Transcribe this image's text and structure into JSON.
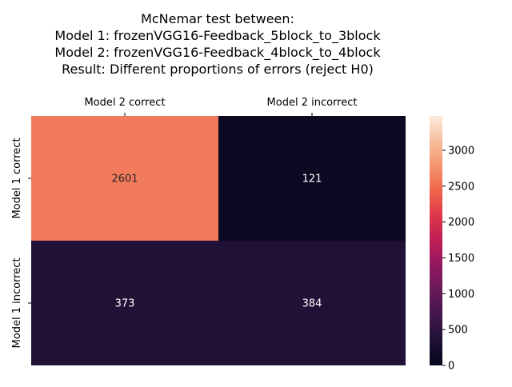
{
  "chart_data": {
    "type": "heatmap",
    "title_lines": [
      "McNemar test between:",
      "Model 1: frozenVGG16-Feedback_5block_to_3block",
      "Model 2: frozenVGG16-Feedback_4block_to_4block",
      "Result: Different proportions of errors (reject H0)"
    ],
    "x_tick_labels": [
      "Model 2 correct",
      "Model 2 incorrect"
    ],
    "x_tick_position": "top",
    "y_tick_labels": [
      "Model 1 correct",
      "Model 1 incorrect"
    ],
    "values": [
      [
        2601,
        121
      ],
      [
        373,
        384
      ]
    ],
    "colorbar": {
      "min": 0,
      "max": 3479,
      "ticks": [
        0,
        500,
        1000,
        1500,
        2000,
        2500,
        3000
      ],
      "colormap": "rocket"
    }
  }
}
